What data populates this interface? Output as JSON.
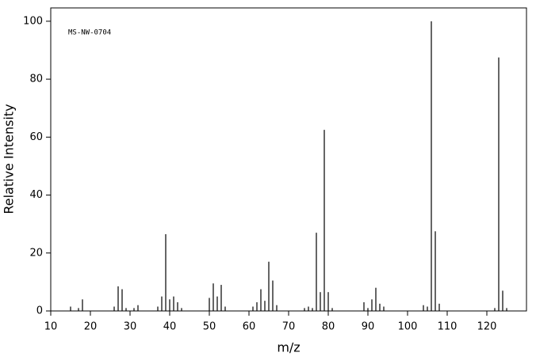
{
  "chart_data": {
    "type": "stem",
    "annotation": "MS-NW-0704",
    "x_label": "m/z",
    "y_label": "Relative Intensity",
    "x": [
      15,
      17,
      18,
      26,
      27,
      28,
      29,
      31,
      32,
      37,
      38,
      39,
      40,
      41,
      42,
      43,
      50,
      51,
      52,
      53,
      54,
      61,
      62,
      63,
      64,
      65,
      66,
      67,
      74,
      75,
      76,
      77,
      78,
      79,
      80,
      81,
      89,
      90,
      91,
      92,
      93,
      94,
      104,
      105,
      106,
      107,
      108,
      122,
      123,
      124,
      125
    ],
    "values": [
      1.5,
      1,
      4,
      1.5,
      8.5,
      7.5,
      1,
      1,
      2,
      1.5,
      5,
      26.5,
      4,
      5,
      3,
      1,
      4.5,
      9.5,
      5,
      9,
      1.5,
      1.5,
      3,
      7.5,
      3.5,
      17,
      10.5,
      2,
      1,
      1.5,
      1,
      27,
      6.5,
      62.5,
      6.5,
      1,
      3,
      1,
      4,
      8,
      2.5,
      1.5,
      2,
      1.5,
      100,
      27.5,
      2.5,
      1,
      87.5,
      7,
      1
    ],
    "color": "#000000",
    "xlim": [
      10,
      130
    ],
    "xticks": [
      10,
      20,
      30,
      40,
      50,
      60,
      70,
      80,
      90,
      100,
      110,
      120
    ],
    "ylim": [
      0,
      104.6
    ],
    "yticks": [
      0,
      20,
      40,
      60,
      80,
      100
    ]
  }
}
